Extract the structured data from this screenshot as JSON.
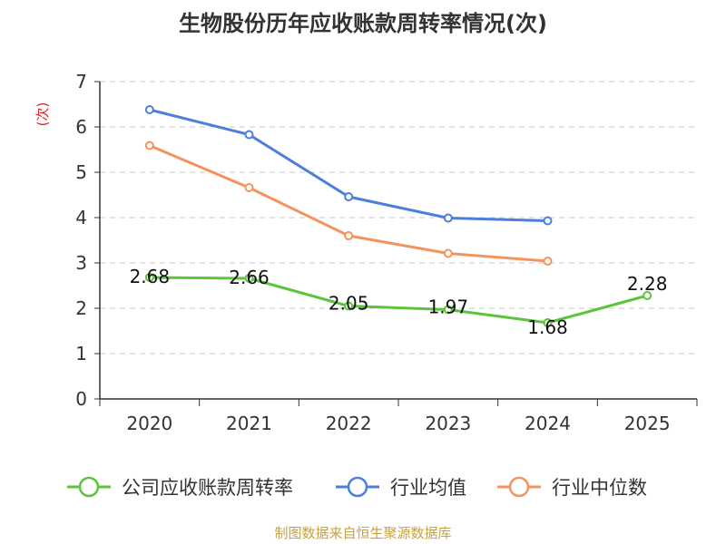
{
  "chart_data": {
    "type": "line",
    "title": "生物股份历年应收账款周转率情况(次)",
    "ylabel": "(次)",
    "xlabel": "",
    "ylim": [
      0,
      7
    ],
    "yticks": [
      0,
      1,
      2,
      3,
      4,
      5,
      6,
      7
    ],
    "grid": true,
    "legend_position": "bottom",
    "categories": [
      "2020",
      "2021",
      "2022",
      "2023",
      "2024",
      "2025"
    ],
    "series": [
      {
        "name": "公司应收账款周转率",
        "color": "#5cc43a",
        "values": [
          2.68,
          2.66,
          2.05,
          1.97,
          1.68,
          2.28
        ],
        "labels": [
          "2.68",
          "2.66",
          "2.05",
          "1.97",
          "1.68",
          "2.28"
        ]
      },
      {
        "name": "行业均值",
        "color": "#4a7fdb",
        "values": [
          6.38,
          5.83,
          4.46,
          3.99,
          3.93,
          null
        ]
      },
      {
        "name": "行业中位数",
        "color": "#f5935e",
        "values": [
          5.59,
          4.66,
          3.6,
          3.21,
          3.04,
          null
        ]
      }
    ],
    "source": "制图数据来自恒生聚源数据库"
  }
}
